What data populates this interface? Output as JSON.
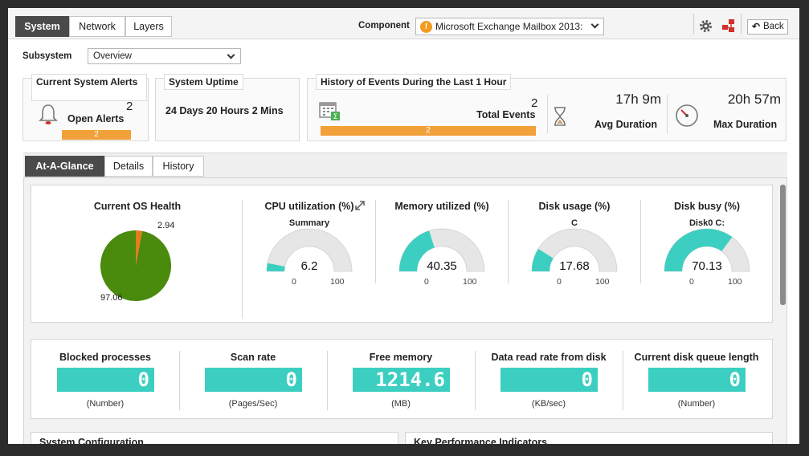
{
  "top_tabs": [
    "System",
    "Network",
    "Layers"
  ],
  "component": {
    "label": "Component",
    "value": "Microsoft Exchange Mailbox 2013:"
  },
  "back_label": "Back",
  "subsystem": {
    "label": "Subsystem",
    "value": "Overview"
  },
  "alerts": {
    "title": "Current System Alerts",
    "count": "2",
    "label": "Open Alerts",
    "bar": "2"
  },
  "uptime": {
    "title": "System Uptime",
    "value": "24 Days 20 Hours 2 Mins"
  },
  "events": {
    "title": "History of Events During the Last 1 Hour",
    "total": "2",
    "total_label": "Total Events",
    "bar": "2",
    "avg": "17h 9m",
    "avg_label": "Avg Duration",
    "max": "20h 57m",
    "max_label": "Max Duration"
  },
  "sub_tabs": [
    "At-A-Glance",
    "Details",
    "History"
  ],
  "os_health": {
    "title": "Current OS Health",
    "slices": [
      {
        "label": "2.94",
        "value": 2.94,
        "color": "#e57c1e"
      },
      {
        "label": "97.06",
        "value": 97.06,
        "color": "#4a8a0c"
      }
    ]
  },
  "gauges": [
    {
      "title": "CPU utilization (%)",
      "sub": "Summary",
      "value": "6.2",
      "fraction": 0.062,
      "min": "0",
      "max": "100"
    },
    {
      "title": "Memory utilized (%)",
      "sub": "",
      "value": "40.35",
      "fraction": 0.4035,
      "min": "0",
      "max": "100"
    },
    {
      "title": "Disk usage (%)",
      "sub": "C",
      "value": "17.68",
      "fraction": 0.1768,
      "min": "0",
      "max": "100"
    },
    {
      "title": "Disk busy (%)",
      "sub": "Disk0 C:",
      "value": "70.13",
      "fraction": 0.7013,
      "min": "0",
      "max": "100"
    }
  ],
  "metrics": [
    {
      "title": "Blocked processes",
      "value": "0",
      "unit": "(Number)"
    },
    {
      "title": "Scan rate",
      "value": "0",
      "unit": "(Pages/Sec)"
    },
    {
      "title": "Free memory",
      "value": "1214.6",
      "unit": "(MB)"
    },
    {
      "title": "Data read rate from disk",
      "value": "0",
      "unit": "(KB/sec)"
    },
    {
      "title": "Current disk queue length",
      "value": "0",
      "unit": "(Number)"
    }
  ],
  "bottom": {
    "left": "System Configuration",
    "right": "Key Performance Indicators"
  },
  "colors": {
    "gauge_fill": "#3ccfc1",
    "gauge_bg": "#e6e6e6",
    "bar": "#f2a03a"
  }
}
